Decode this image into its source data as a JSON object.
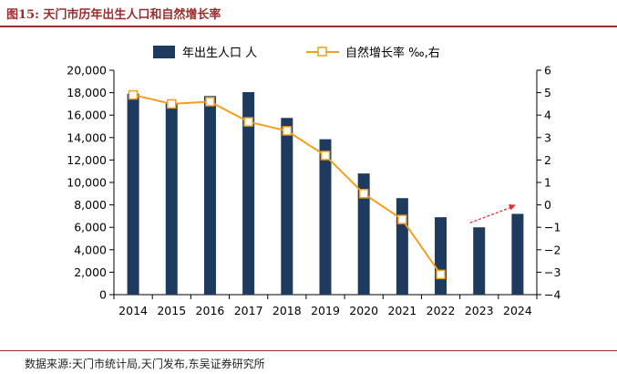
{
  "figure": {
    "title": "图15:  天门市历年出生人口和自然增长率",
    "source": "数据来源:天门市统计局,天门发布,东吴证券研究所"
  },
  "colors": {
    "bar": "#1f3a5f",
    "line": "#f0a01e",
    "marker_fill": "#ffffff",
    "arrow": "#e03030",
    "rule": "#9b2d2d"
  },
  "chart_data": {
    "type": "bar",
    "categories": [
      "2014",
      "2015",
      "2016",
      "2017",
      "2018",
      "2019",
      "2020",
      "2021",
      "2022",
      "2023",
      "2024"
    ],
    "series": [
      {
        "name": "年出生人口 人",
        "type": "bar",
        "axis": "left",
        "values": [
          17900,
          17100,
          17700,
          18050,
          15750,
          13850,
          10800,
          8600,
          6900,
          6000,
          7200
        ]
      },
      {
        "name": "自然增长率 ‰,右",
        "type": "line",
        "axis": "right",
        "values": [
          4.9,
          4.5,
          4.6,
          3.7,
          3.3,
          2.2,
          0.5,
          -0.65,
          -3.1,
          null,
          null
        ]
      }
    ],
    "y_left": {
      "min": 0,
      "max": 20000,
      "step": 2000,
      "tick_labels": [
        "0",
        "2,000",
        "4,000",
        "6,000",
        "8,000",
        "10,000",
        "12,000",
        "14,000",
        "16,000",
        "18,000",
        "20,000"
      ]
    },
    "y_right": {
      "min": -4,
      "max": 6,
      "step": 1,
      "tick_labels": [
        "−4",
        "−3",
        "−2",
        "−1",
        "0",
        "1",
        "2",
        "3",
        "4",
        "5",
        "6"
      ]
    },
    "annotation": {
      "type": "dashed-arrow",
      "from": {
        "x": "2023",
        "y": -0.8
      },
      "to": {
        "x": "2024",
        "y": 0
      }
    },
    "legend_position": "top-center",
    "grid": false
  }
}
